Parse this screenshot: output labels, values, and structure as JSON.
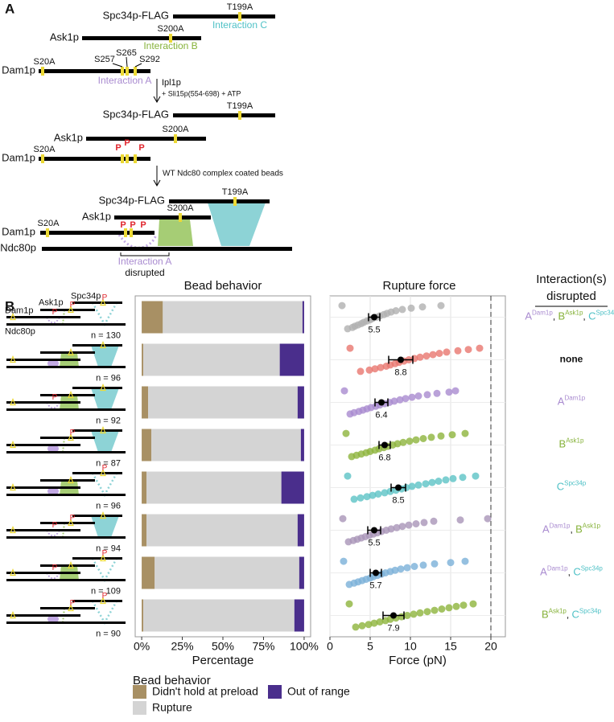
{
  "panel_a": {
    "label": "A",
    "step1": {
      "spc34": "Spc34p-FLAG",
      "t199a": "T199A",
      "interaction_c": "Interaction C",
      "ask1": "Ask1p",
      "s200a": "S200A",
      "interaction_b": "Interaction B",
      "dam1": "Dam1p",
      "s20a": "S20A",
      "s257": "S257",
      "s265": "S265",
      "s292": "S292",
      "interaction_a": "Interaction A"
    },
    "arrow1": {
      "line1": "Ipl1p",
      "line2": "+ Sli15p(554-698) + ATP"
    },
    "step2": {
      "spc34": "Spc34p-FLAG",
      "t199a": "T199A",
      "ask1": "Ask1p",
      "s200a": "S200A",
      "dam1": "Dam1p",
      "s20a": "S20A",
      "p": "P"
    },
    "arrow2": {
      "line1": "WT Ndc80 complex coated beads"
    },
    "step3": {
      "spc34": "Spc34p-FLAG",
      "t199a": "T199A",
      "ask1": "Ask1p",
      "s200a": "S200A",
      "dam1": "Dam1p",
      "s20a": "S20A",
      "p": "P",
      "ndc80": "Ndc80p",
      "interaction_a": "Interaction A",
      "disrupted": "disrupted"
    }
  },
  "panel_b": {
    "label": "B",
    "schematic": {
      "spc34": "Spc34p",
      "ask1": "Ask1p",
      "dam1": "Dam1p",
      "ndc80": "Ndc80p",
      "p": "P"
    }
  },
  "interactions": {
    "title": [
      "Interaction(s)",
      "disrupted"
    ],
    "separator": ",",
    "none": "none",
    "colors": {
      "A": "#a98bd0",
      "B": "#86b23a",
      "C": "#4fc1c6"
    },
    "rows": [
      [
        {
          "letter": "A",
          "sup": "Dam1p"
        },
        {
          "letter": "B",
          "sup": "Ask1p"
        },
        {
          "letter": "C",
          "sup": "Spc34p"
        }
      ],
      [],
      [
        {
          "letter": "A",
          "sup": "Dam1p"
        }
      ],
      [
        {
          "letter": "B",
          "sup": "Ask1p"
        }
      ],
      [
        {
          "letter": "C",
          "sup": "Spc34p"
        }
      ],
      [
        {
          "letter": "A",
          "sup": "Dam1p"
        },
        {
          "letter": "B",
          "sup": "Ask1p"
        }
      ],
      [
        {
          "letter": "A",
          "sup": "Dam1p"
        },
        {
          "letter": "C",
          "sup": "Spc34p"
        }
      ],
      [
        {
          "letter": "B",
          "sup": "Ask1p"
        },
        {
          "letter": "C",
          "sup": "Spc34p"
        }
      ]
    ]
  },
  "chart_data": [
    {
      "type": "stacked_bar",
      "title": "Bead behavior",
      "x_label": "Percentage",
      "legend_title": "Bead behavior",
      "categories": [
        "n = 130",
        "n = 96",
        "n = 92",
        "n = 87",
        "n = 96",
        "n = 94",
        "n = 109",
        "n = 90"
      ],
      "series": [
        {
          "name": "Didn't hold at preload",
          "color": "#a89064",
          "values": [
            13,
            1,
            4,
            6,
            3,
            3,
            8,
            1
          ]
        },
        {
          "name": "Rupture",
          "color": "#d4d4d4",
          "values": [
            86,
            84,
            92,
            92,
            83,
            93,
            89,
            93
          ]
        },
        {
          "name": "Out of range",
          "color": "#4a2e8c",
          "values": [
            1,
            15,
            4,
            2,
            14,
            4,
            3,
            6
          ]
        }
      ],
      "xlim": [
        -4,
        104
      ],
      "xticks": [
        {
          "value": 0,
          "label": "0%"
        },
        {
          "value": 25,
          "label": "25%"
        },
        {
          "value": 50,
          "label": "50%"
        },
        {
          "value": 75,
          "label": "75%"
        },
        {
          "value": 100,
          "label": "100%"
        }
      ]
    },
    {
      "type": "strip",
      "title": "Rupture force",
      "x_label": "Force (pN)",
      "grid": true,
      "threshold": 20,
      "xlim": [
        0,
        21.8
      ],
      "xticks": [
        0,
        5,
        10,
        15,
        20
      ],
      "series": [
        {
          "color": "#b0b0b0",
          "mean": 5.5,
          "error": 0.7,
          "values": [
            1.5,
            2.2,
            2.8,
            3.1,
            3.5,
            3.9,
            4.2,
            4.6,
            5.0,
            5.3,
            5.8,
            6.2,
            6.7,
            7.1,
            7.6,
            8.2,
            9.0,
            10.1,
            11.5,
            13.8
          ]
        },
        {
          "color": "#e8776f",
          "mean": 8.8,
          "error": 1.5,
          "values": [
            2.5,
            3.8,
            4.9,
            5.6,
            6.3,
            7.0,
            7.5,
            8.1,
            8.6,
            9.2,
            9.8,
            10.5,
            11.2,
            12.0,
            12.8,
            13.6,
            14.5,
            15.9,
            17.2,
            18.6
          ]
        },
        {
          "color": "#a98bd0",
          "mean": 6.4,
          "error": 0.8,
          "values": [
            1.8,
            2.5,
            3.0,
            3.6,
            4.1,
            4.6,
            5.1,
            5.7,
            6.2,
            6.8,
            7.4,
            8.0,
            8.7,
            9.4,
            10.2,
            11.0,
            12.1,
            13.3,
            14.8,
            15.6
          ]
        },
        {
          "color": "#8db43c",
          "mean": 6.8,
          "error": 0.7,
          "values": [
            2.0,
            2.7,
            3.3,
            3.9,
            4.5,
            5.0,
            5.6,
            6.1,
            6.7,
            7.2,
            7.8,
            8.4,
            9.1,
            9.9,
            10.7,
            11.6,
            12.6,
            13.8,
            15.2,
            16.8
          ]
        },
        {
          "color": "#5cc3c6",
          "mean": 8.5,
          "error": 0.9,
          "values": [
            2.2,
            3.0,
            3.8,
            4.6,
            5.3,
            6.0,
            6.8,
            7.5,
            8.2,
            8.9,
            9.5,
            10.2,
            11.0,
            11.9,
            12.7,
            13.5,
            14.4,
            15.3,
            16.5,
            18.1
          ]
        },
        {
          "color": "#a995b8",
          "mean": 5.5,
          "error": 0.8,
          "values": [
            1.6,
            2.3,
            2.9,
            3.4,
            3.9,
            4.4,
            4.9,
            5.4,
            5.9,
            6.4,
            7.0,
            7.6,
            8.3,
            9.0,
            9.8,
            10.7,
            11.7,
            12.9,
            16.2,
            19.6
          ]
        },
        {
          "color": "#7ab0d8",
          "mean": 5.7,
          "error": 0.7,
          "values": [
            1.7,
            2.4,
            3.0,
            3.5,
            4.0,
            4.5,
            5.0,
            5.4,
            5.9,
            6.4,
            6.9,
            7.5,
            8.1,
            8.8,
            9.6,
            10.5,
            11.6,
            13.0,
            15.0,
            16.8
          ]
        },
        {
          "color": "#8db43c",
          "mean": 7.9,
          "error": 1.3,
          "values": [
            2.4,
            3.2,
            4.0,
            4.8,
            5.5,
            6.2,
            6.9,
            7.5,
            8.2,
            8.9,
            9.6,
            10.4,
            11.2,
            12.1,
            13.0,
            13.9,
            14.8,
            15.7,
            16.6,
            17.8
          ]
        }
      ]
    }
  ]
}
